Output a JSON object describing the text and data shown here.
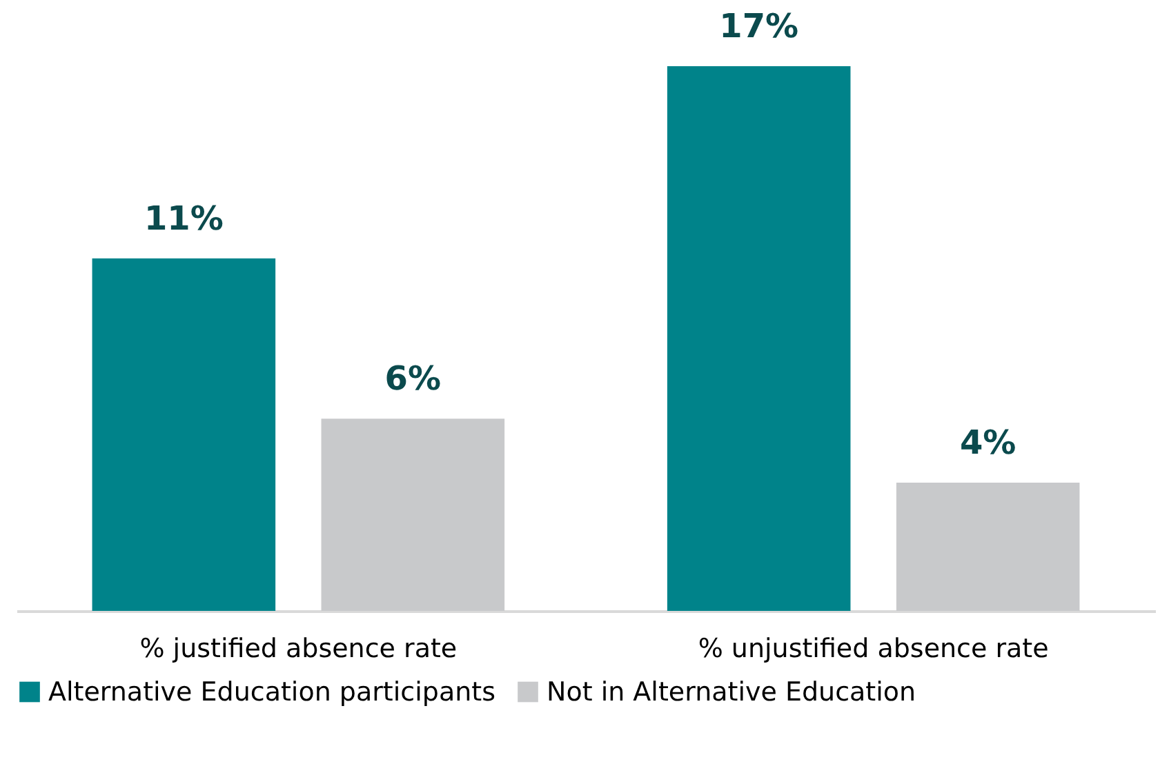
{
  "chart_data": {
    "type": "bar",
    "categories": [
      "% justified absence rate",
      "% unjustified absence rate"
    ],
    "series": [
      {
        "name": "Alternative Education participants",
        "color": "#00838a",
        "values": [
          11,
          17
        ],
        "value_labels": [
          "11%",
          "17%"
        ]
      },
      {
        "name": "Not in Alternative Education",
        "color": "#c8c9cb",
        "values": [
          6,
          4
        ],
        "value_labels": [
          "6%",
          "4%"
        ]
      }
    ],
    "legend": "bottom"
  }
}
